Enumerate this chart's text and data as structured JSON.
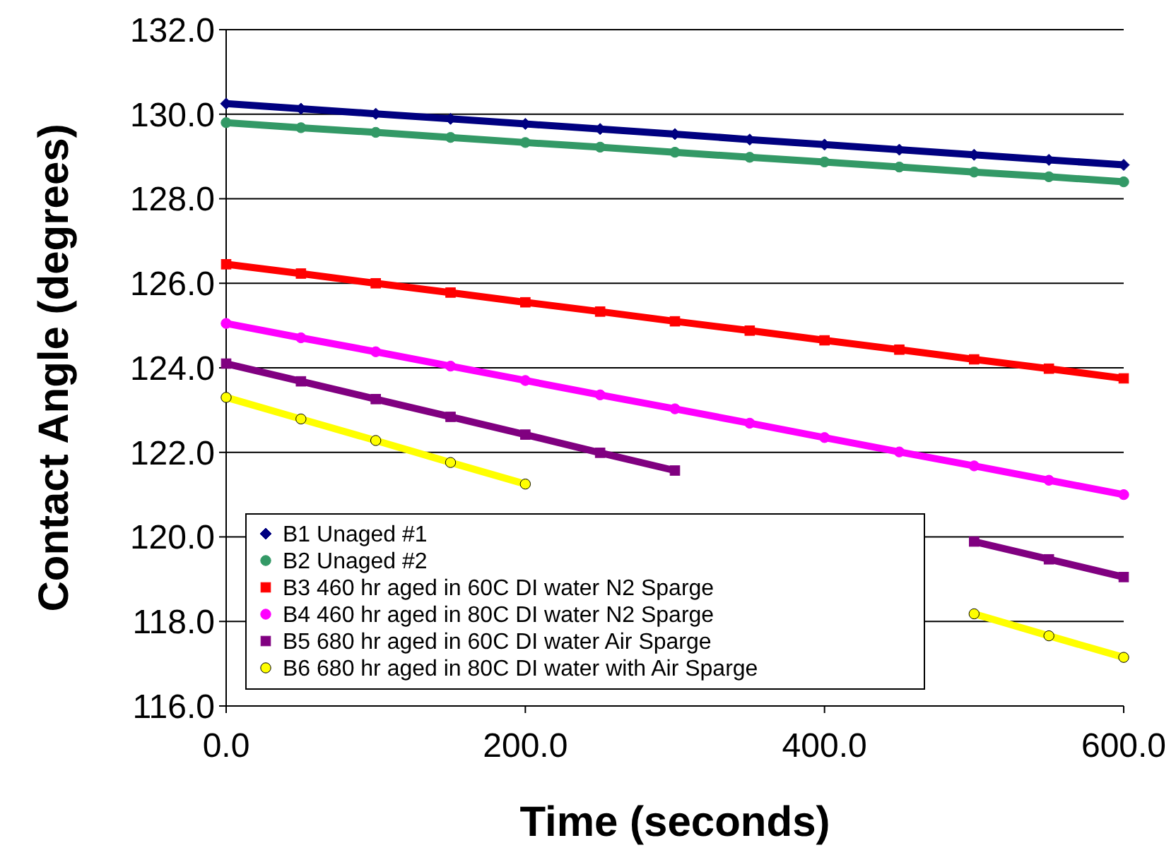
{
  "chart_data": {
    "type": "line",
    "xlabel": "Time (seconds)",
    "ylabel": "Contact Angle (degrees)",
    "x": [
      0,
      50,
      100,
      150,
      200,
      250,
      300,
      350,
      400,
      450,
      500,
      550,
      600
    ],
    "xlim": [
      0,
      600
    ],
    "xticks": [
      {
        "value": 0,
        "label": "0.0"
      },
      {
        "value": 200,
        "label": "200.0"
      },
      {
        "value": 400,
        "label": "400.0"
      },
      {
        "value": 600,
        "label": "600.0"
      }
    ],
    "ylim": [
      116,
      132
    ],
    "yticks": [
      {
        "value": 116,
        "label": "116.0"
      },
      {
        "value": 118,
        "label": "118.0"
      },
      {
        "value": 120,
        "label": "120.0"
      },
      {
        "value": 122,
        "label": "122.0"
      },
      {
        "value": 124,
        "label": "124.0"
      },
      {
        "value": 126,
        "label": "126.0"
      },
      {
        "value": 128,
        "label": "128.0"
      },
      {
        "value": 130,
        "label": "130.0"
      },
      {
        "value": 132,
        "label": "132.0"
      }
    ],
    "grid": "y",
    "legend": "bottom left",
    "series": [
      {
        "name": "B1 Unaged #1",
        "color": "#000080",
        "marker": "diamond",
        "values": [
          130.25,
          130.13,
          130.01,
          129.89,
          129.77,
          129.65,
          129.53,
          129.4,
          129.28,
          129.16,
          129.04,
          128.92,
          128.8
        ]
      },
      {
        "name": "B2 Unaged #2",
        "color": "#339966",
        "marker": "circle",
        "values": [
          129.8,
          129.68,
          129.57,
          129.45,
          129.33,
          129.22,
          129.1,
          128.98,
          128.87,
          128.75,
          128.63,
          128.52,
          128.4
        ]
      },
      {
        "name": "B3 460 hr aged in 60C DI water N2 Sparge",
        "color": "#ff0000",
        "marker": "square",
        "values": [
          126.45,
          126.23,
          126.0,
          125.78,
          125.55,
          125.33,
          125.1,
          124.88,
          124.65,
          124.43,
          124.2,
          123.98,
          123.75
        ]
      },
      {
        "name": "B4 460 hr aged in 80C DI water N2 Sparge",
        "color": "#ff00ff",
        "marker": "circle",
        "values": [
          125.05,
          124.71,
          124.38,
          124.04,
          123.7,
          123.36,
          123.03,
          122.69,
          122.35,
          122.01,
          121.68,
          121.34,
          121.0
        ]
      },
      {
        "name": "B5 680 hr aged in 60C DI water Air Sparge",
        "color": "#800080",
        "marker": "square",
        "values": [
          124.1,
          123.68,
          123.26,
          122.84,
          122.42,
          121.99,
          121.57,
          null,
          null,
          null,
          119.89,
          119.47,
          119.05
        ]
      },
      {
        "name": "B6 680 hr aged in 80C DI water with Air Sparge",
        "color": "#ffff00",
        "marker": "circle",
        "values": [
          123.3,
          122.79,
          122.28,
          121.76,
          121.25,
          null,
          null,
          null,
          null,
          null,
          118.18,
          117.66,
          117.15
        ]
      }
    ]
  }
}
